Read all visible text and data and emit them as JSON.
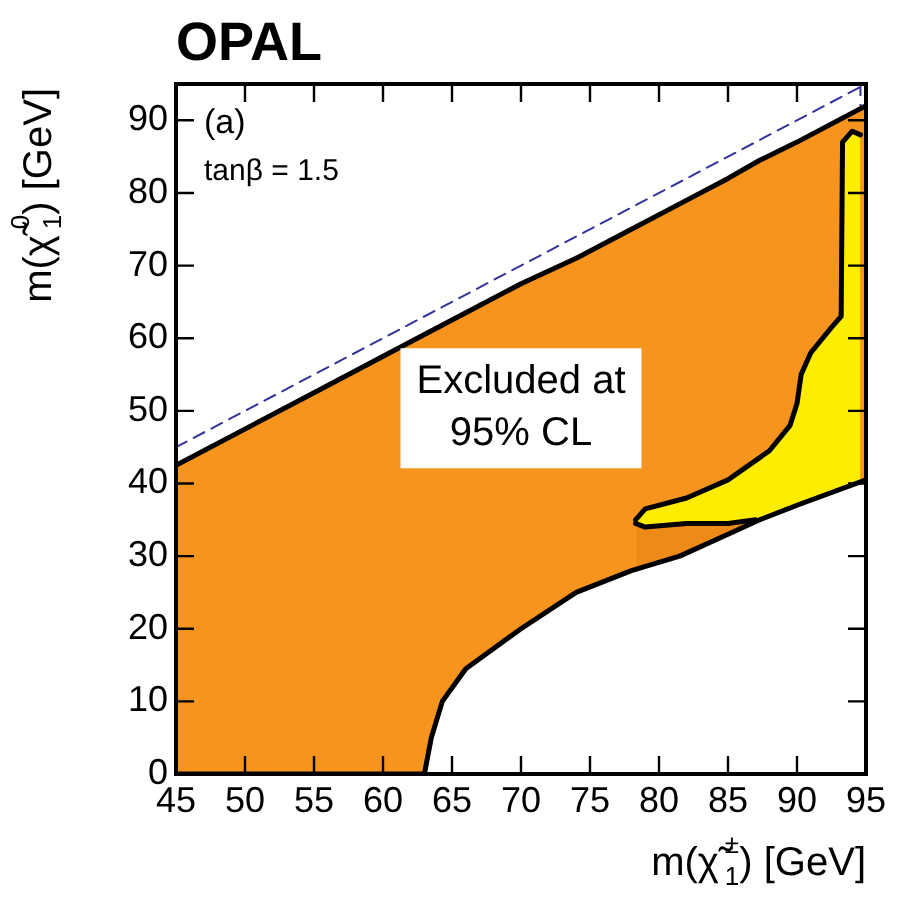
{
  "chart_data": {
    "type": "area",
    "title": "OPAL",
    "xlabel": "m(χ̃$^{±}$$_{1}$) [GeV]",
    "ylabel": "m(χ̃$^{0}$$_{1}$) [GeV]",
    "xlim": [
      45,
      95
    ],
    "ylim": [
      0,
      95
    ],
    "xticks": [
      45,
      50,
      55,
      60,
      65,
      70,
      75,
      80,
      85,
      90,
      95
    ],
    "yticks": [
      0,
      10,
      20,
      30,
      40,
      50,
      60,
      70,
      80,
      90
    ],
    "grid": false,
    "legend": false,
    "marker": "none",
    "annotations": [
      "(a)",
      "tanβ = 1.5",
      "Excluded at 95% CL"
    ],
    "ref_lines": [
      {
        "axis": "x",
        "value": 94.6,
        "color": "#333399",
        "line_style": "dashed"
      }
    ],
    "series": [
      {
        "color": "#f7941d",
        "x": [
          45,
          55,
          63,
          66,
          70,
          74,
          78,
          81.5,
          85,
          87.3,
          90,
          95
        ],
        "values": [
          42.5,
          52.5,
          60.5,
          63.5,
          67.5,
          71,
          75,
          78.5,
          82,
          84.5,
          87,
          92
        ]
      },
      {
        "color": "#ffed00",
        "x": [
          78.3,
          79,
          82,
          85,
          88,
          89.5,
          90,
          90.3,
          91,
          92.5,
          93.2,
          93.3,
          94,
          94.6
        ],
        "values": [
          35,
          36.5,
          38,
          40.5,
          44.5,
          48,
          51,
          55,
          58,
          61.5,
          63,
          87,
          88.5,
          88
        ]
      },
      {
        "color": "#ee8a18",
        "x": [
          78.3,
          79,
          82,
          85,
          87
        ],
        "values": [
          34.5,
          34,
          34.5,
          34.5,
          35
        ]
      },
      {
        "color": "#ffffff",
        "x": [
          45,
          55,
          63,
          63.5,
          64.3,
          66,
          70,
          74,
          78,
          81.5,
          85,
          87.3,
          90,
          95
        ],
        "values": [
          0,
          0,
          0,
          5,
          10,
          14.5,
          20,
          25,
          28,
          30,
          33,
          35,
          37,
          40.5
        ]
      },
      {
        "type": "line",
        "color": "#333399",
        "line_style": "dashed",
        "x": [
          45,
          95
        ],
        "values": [
          45,
          95
        ]
      }
    ]
  }
}
